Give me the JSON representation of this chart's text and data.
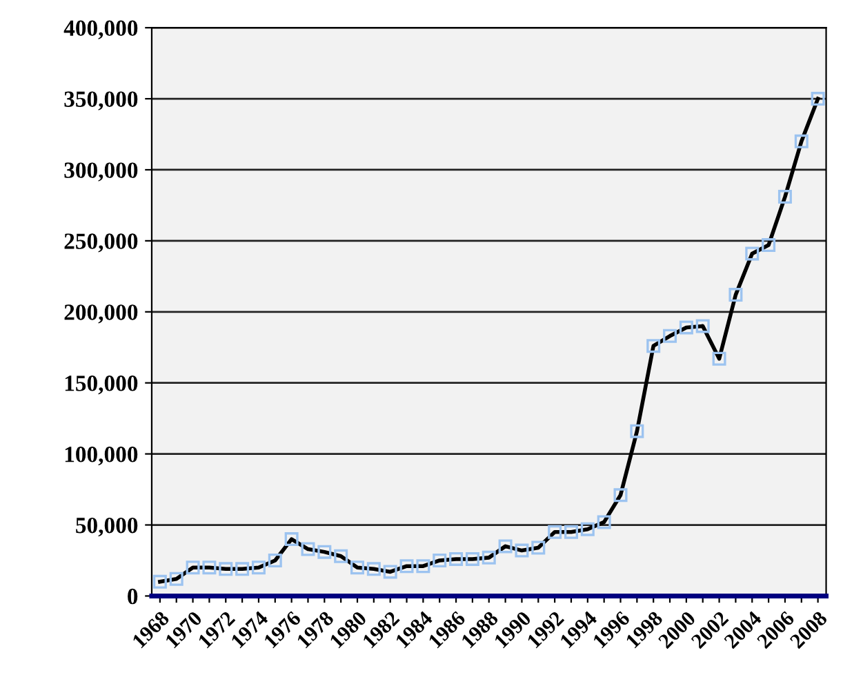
{
  "chart_data": {
    "type": "line",
    "categories": [
      "1968",
      null,
      "1970",
      null,
      "1972",
      null,
      "1974",
      null,
      "1976",
      null,
      "1978",
      null,
      "1980",
      null,
      "1982",
      null,
      "1984",
      null,
      "1986",
      null,
      "1988",
      null,
      "1990",
      null,
      "1992",
      null,
      "1994",
      null,
      "1996",
      null,
      "1998",
      null,
      "2000",
      null,
      "2002",
      null,
      "2004",
      null,
      "2006",
      null,
      "2008"
    ],
    "series": [
      {
        "color": "#000000",
        "values": [
          10000,
          12000,
          20000,
          20000,
          19000,
          19000,
          20000,
          25000,
          40000,
          33000,
          31000,
          28000,
          20000,
          19000,
          17000,
          21000,
          21000,
          25000,
          26000,
          26000,
          27000,
          35000,
          32000,
          34000,
          45000,
          45000,
          47000,
          52000,
          71000,
          116000,
          176000,
          183000,
          189000,
          190000,
          167000,
          212000,
          241000,
          247000,
          281000,
          320000,
          350000
        ]
      }
    ],
    "ylim": [
      0,
      400000
    ],
    "yticks": [
      {
        "value": 0,
        "label": "0"
      },
      {
        "value": 50000,
        "label": "50,000"
      },
      {
        "value": 100000,
        "label": "100,000"
      },
      {
        "value": 150000,
        "label": "150,000"
      },
      {
        "value": 200000,
        "label": "200,000"
      },
      {
        "value": 250000,
        "label": "250,000"
      },
      {
        "value": 300000,
        "label": "300,000"
      },
      {
        "value": 350000,
        "label": "350,000"
      },
      {
        "value": 400000,
        "label": "400,000"
      }
    ],
    "grid": "y",
    "marker": "square",
    "line_style": "solid"
  }
}
